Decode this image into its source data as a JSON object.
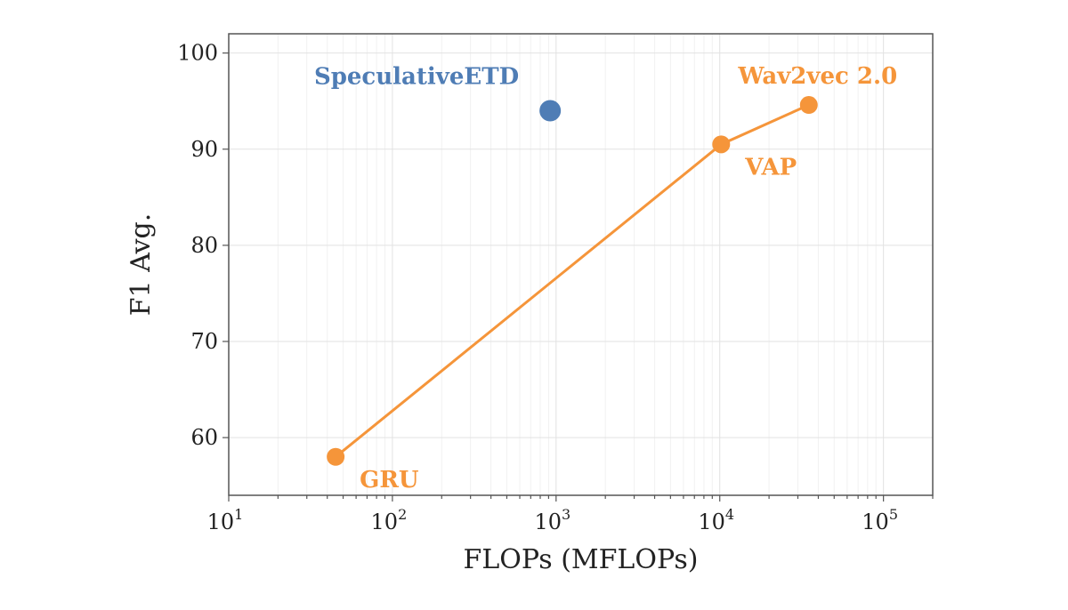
{
  "chart_data": {
    "type": "scatter",
    "xlabel": "FLOPs (MFLOPs)",
    "ylabel": "F1 Avg.",
    "xscale": "log",
    "xlim": [
      10,
      200000
    ],
    "ylim": [
      54,
      102
    ],
    "grid": true,
    "x_ticks": [
      {
        "value": 10,
        "base": "10",
        "exp": "1"
      },
      {
        "value": 100,
        "base": "10",
        "exp": "2"
      },
      {
        "value": 1000,
        "base": "10",
        "exp": "3"
      },
      {
        "value": 10000,
        "base": "10",
        "exp": "4"
      },
      {
        "value": 100000,
        "base": "10",
        "exp": "5"
      }
    ],
    "y_ticks": [
      {
        "value": 60,
        "label": "60"
      },
      {
        "value": 70,
        "label": "70"
      },
      {
        "value": 80,
        "label": "80"
      },
      {
        "value": 90,
        "label": "90"
      },
      {
        "value": 100,
        "label": "100"
      }
    ],
    "series": [
      {
        "color": "#4f7db5",
        "line": false,
        "points": [
          {
            "x": 920,
            "y": 94.0,
            "label": "SpeculativeETD",
            "label_anchor": "upper-left"
          }
        ]
      },
      {
        "color": "#f5953a",
        "line": true,
        "points": [
          {
            "x": 45,
            "y": 58.0,
            "label": "GRU",
            "label_anchor": "lower-right"
          },
          {
            "x": 10200,
            "y": 90.5,
            "label": "VAP",
            "label_anchor": "lower-right"
          },
          {
            "x": 35000,
            "y": 94.6,
            "label": "Wav2vec 2.0",
            "label_anchor": "upper"
          }
        ]
      }
    ]
  }
}
